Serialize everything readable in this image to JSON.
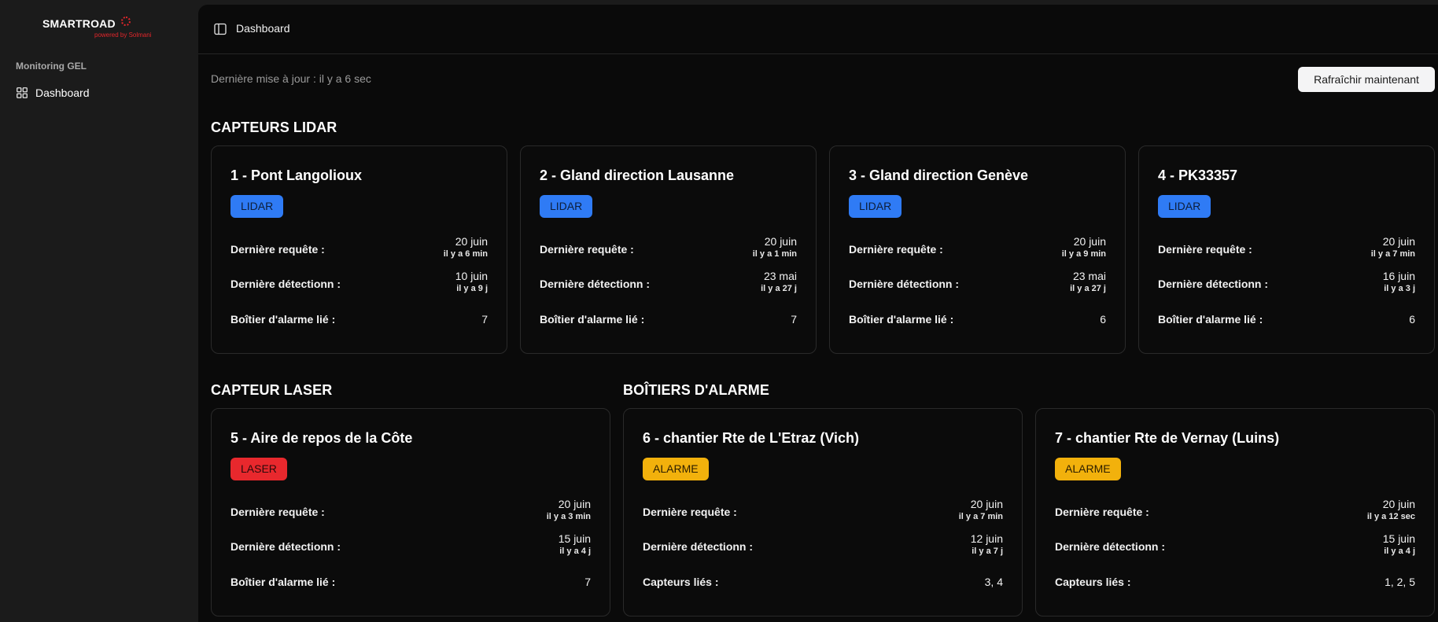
{
  "brand": {
    "name": "SMARTROAD",
    "tagline": "powered by Solmani",
    "accent": "#e3262b"
  },
  "sidebar": {
    "group_label": "Monitoring GEL",
    "items": [
      {
        "label": "Dashboard",
        "icon": "grid-icon"
      }
    ]
  },
  "topbar": {
    "breadcrumb": "Dashboard",
    "toggle_icon": "sidebar-toggle-icon"
  },
  "status": {
    "last_update": "Dernière mise à jour : il y a 6 sec",
    "refresh_label": "Rafraîchir maintenant"
  },
  "sections": {
    "lidar_title": "CAPTEURS LIDAR",
    "laser_title": "CAPTEUR LASER",
    "alarm_title": "BOÎTIERS D'ALARME"
  },
  "badge_colors": {
    "LIDAR": "#2f7bf5",
    "LASER": "#e8282d",
    "ALARME": "#f2b10c"
  },
  "cards": [
    {
      "title": "1 - Pont Langolioux",
      "badge": "LIDAR",
      "rows": [
        {
          "label": "Dernière requête :",
          "date": "20 juin",
          "rel": "il y a 6 min"
        },
        {
          "label": "Dernière détectionn :",
          "date": "10 juin",
          "rel": "il y a 9 j"
        },
        {
          "label": "Boîtier d'alarme lié :",
          "value": "7"
        }
      ]
    },
    {
      "title": "2 - Gland direction Lausanne",
      "badge": "LIDAR",
      "rows": [
        {
          "label": "Dernière requête :",
          "date": "20 juin",
          "rel": "il y a 1 min"
        },
        {
          "label": "Dernière détectionn :",
          "date": "23 mai",
          "rel": "il y a 27 j"
        },
        {
          "label": "Boîtier d'alarme lié :",
          "value": "7"
        }
      ]
    },
    {
      "title": "3 - Gland direction Genève",
      "badge": "LIDAR",
      "rows": [
        {
          "label": "Dernière requête :",
          "date": "20 juin",
          "rel": "il y a 9 min"
        },
        {
          "label": "Dernière détectionn :",
          "date": "23 mai",
          "rel": "il y a 27 j"
        },
        {
          "label": "Boîtier d'alarme lié :",
          "value": "6"
        }
      ]
    },
    {
      "title": "4 - PK33357",
      "badge": "LIDAR",
      "rows": [
        {
          "label": "Dernière requête :",
          "date": "20 juin",
          "rel": "il y a 7 min"
        },
        {
          "label": "Dernière détectionn :",
          "date": "16 juin",
          "rel": "il y a 3 j"
        },
        {
          "label": "Boîtier d'alarme lié :",
          "value": "6"
        }
      ]
    },
    {
      "title": "5 - Aire de repos de la Côte",
      "badge": "LASER",
      "rows": [
        {
          "label": "Dernière requête :",
          "date": "20 juin",
          "rel": "il y a 3 min"
        },
        {
          "label": "Dernière détectionn :",
          "date": "15 juin",
          "rel": "il y a 4 j"
        },
        {
          "label": "Boîtier d'alarme lié :",
          "value": "7"
        }
      ]
    },
    {
      "title": "6 - chantier Rte de L'Etraz (Vich)",
      "badge": "ALARME",
      "rows": [
        {
          "label": "Dernière requête :",
          "date": "20 juin",
          "rel": "il y a 7 min"
        },
        {
          "label": "Dernière détectionn :",
          "date": "12 juin",
          "rel": "il y a 7 j"
        },
        {
          "label": "Capteurs liés :",
          "value": "3, 4"
        }
      ]
    },
    {
      "title": "7 - chantier Rte de Vernay (Luins)",
      "badge": "ALARME",
      "rows": [
        {
          "label": "Dernière requête :",
          "date": "20 juin",
          "rel": "il y a 12 sec"
        },
        {
          "label": "Dernière détectionn :",
          "date": "15 juin",
          "rel": "il y a 4 j"
        },
        {
          "label": "Capteurs liés :",
          "value": "1, 2, 5"
        }
      ]
    }
  ]
}
